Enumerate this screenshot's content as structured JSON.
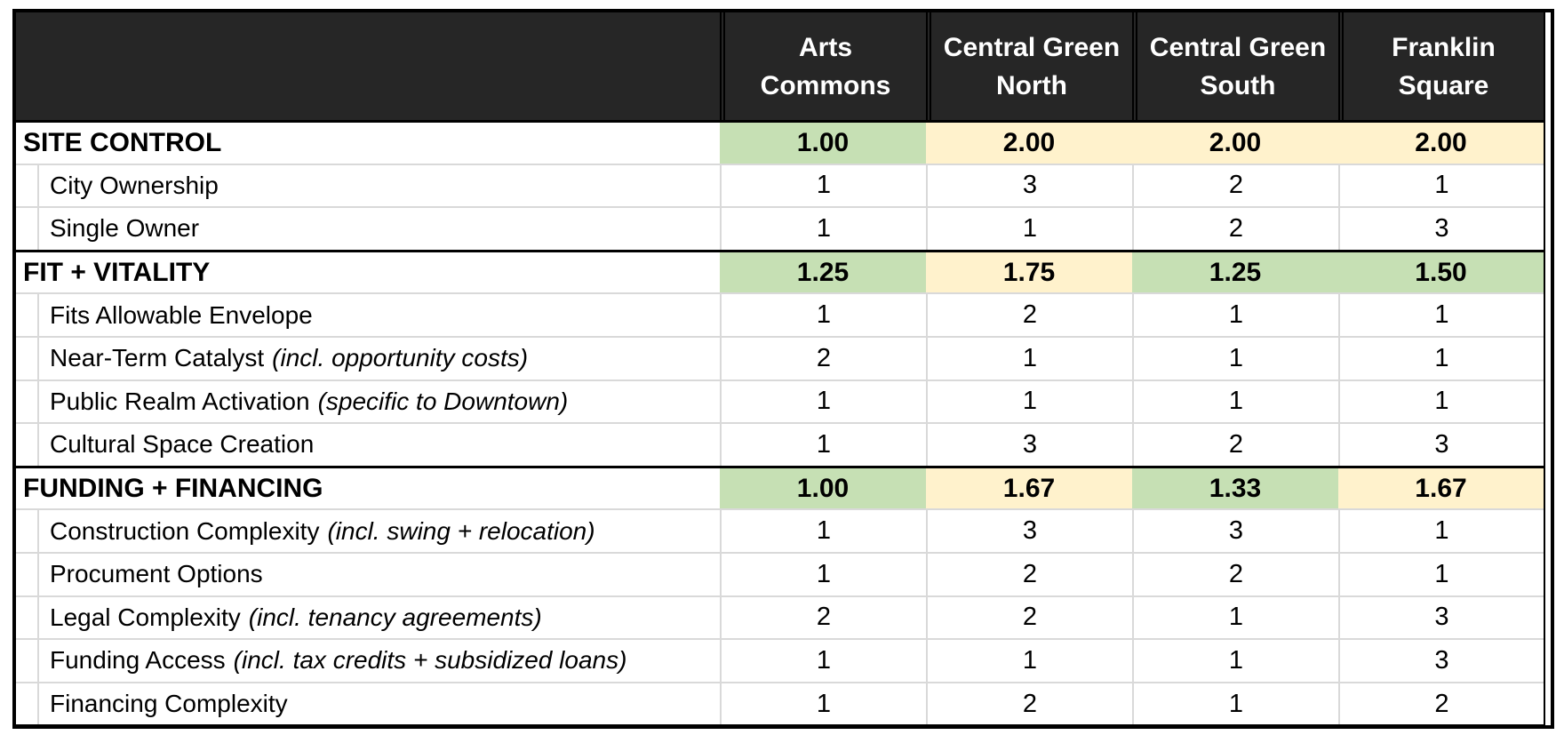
{
  "colors": {
    "header_bg": "#262626",
    "header_text": "#ffffff",
    "section_green": "#c6e0b4",
    "section_yellow": "#fff2cc",
    "grid_line": "#d9d9d9",
    "border": "#000000",
    "body_bg": "#ffffff"
  },
  "chart_data": {
    "type": "table",
    "columns": [
      {
        "label": "Arts Commons",
        "lines": [
          "Arts",
          "Commons"
        ]
      },
      {
        "label": "Central Green North",
        "lines": [
          "Central Green",
          "North"
        ]
      },
      {
        "label": "Central Green South",
        "lines": [
          "Central Green",
          "South"
        ]
      },
      {
        "label": "Franklin Square",
        "lines": [
          "Franklin",
          "Square"
        ]
      }
    ],
    "rows": [
      {
        "kind": "section",
        "label": "SITE CONTROL",
        "values": [
          "1.00",
          "2.00",
          "2.00",
          "2.00"
        ],
        "highlights": [
          "green",
          "yellow",
          "yellow",
          "yellow"
        ]
      },
      {
        "kind": "detail",
        "label": "City Ownership",
        "note": "",
        "values": [
          "1",
          "3",
          "2",
          "1"
        ]
      },
      {
        "kind": "detail",
        "label": "Single Owner",
        "note": "",
        "values": [
          "1",
          "1",
          "2",
          "3"
        ]
      },
      {
        "kind": "section",
        "label": "FIT + VITALITY",
        "values": [
          "1.25",
          "1.75",
          "1.25",
          "1.50"
        ],
        "highlights": [
          "green",
          "yellow",
          "green",
          "green"
        ]
      },
      {
        "kind": "detail",
        "label": "Fits Allowable Envelope",
        "note": "",
        "values": [
          "1",
          "2",
          "1",
          "1"
        ]
      },
      {
        "kind": "detail",
        "label": "Near-Term Catalyst",
        "note": "(incl. opportunity costs)",
        "values": [
          "2",
          "1",
          "1",
          "1"
        ]
      },
      {
        "kind": "detail",
        "label": "Public Realm Activation",
        "note": "(specific to Downtown)",
        "values": [
          "1",
          "1",
          "1",
          "1"
        ]
      },
      {
        "kind": "detail",
        "label": "Cultural Space Creation",
        "note": "",
        "values": [
          "1",
          "3",
          "2",
          "3"
        ]
      },
      {
        "kind": "section",
        "label": "FUNDING + FINANCING",
        "values": [
          "1.00",
          "1.67",
          "1.33",
          "1.67"
        ],
        "highlights": [
          "green",
          "yellow",
          "green",
          "yellow"
        ]
      },
      {
        "kind": "detail",
        "label": "Construction Complexity",
        "note": "(incl. swing + relocation)",
        "values": [
          "1",
          "3",
          "3",
          "1"
        ]
      },
      {
        "kind": "detail",
        "label": "Procument Options",
        "note": "",
        "values": [
          "1",
          "2",
          "2",
          "1"
        ]
      },
      {
        "kind": "detail",
        "label": "Legal Complexity",
        "note": "(incl. tenancy agreements)",
        "values": [
          "2",
          "2",
          "1",
          "3"
        ]
      },
      {
        "kind": "detail",
        "label": "Funding Access",
        "note": "(incl. tax credits + subsidized loans)",
        "values": [
          "1",
          "1",
          "1",
          "3"
        ]
      },
      {
        "kind": "detail",
        "label": "Financing Complexity",
        "note": "",
        "values": [
          "1",
          "2",
          "1",
          "2"
        ]
      }
    ]
  }
}
